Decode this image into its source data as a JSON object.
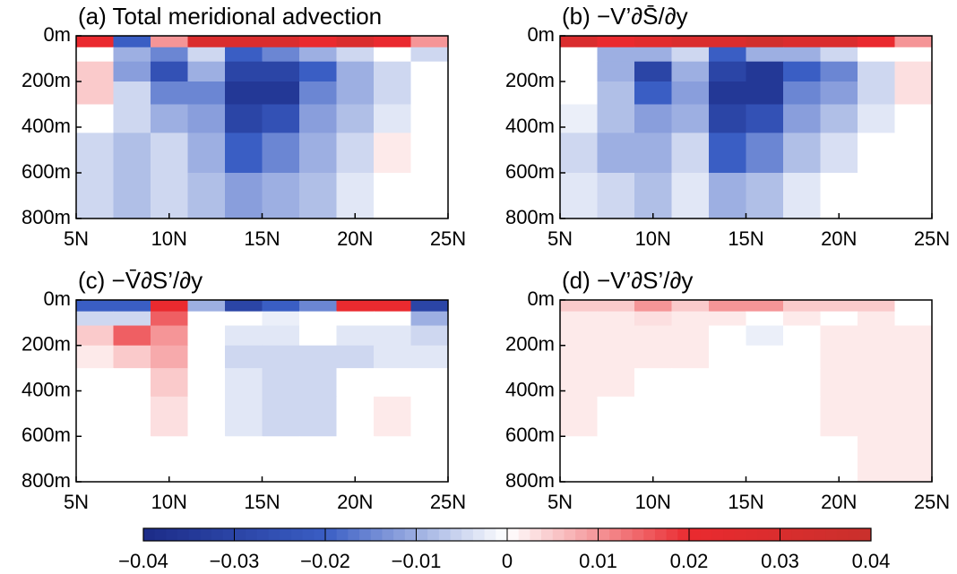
{
  "chart_data": [
    {
      "type": "heatmap",
      "title": "(a) Total meridional advection",
      "x": [
        6,
        8,
        10,
        12,
        14,
        16,
        18,
        20,
        22,
        24
      ],
      "depth": [
        25,
        75,
        150,
        250,
        350,
        500,
        700
      ],
      "values": [
        [
          0.02,
          -0.02,
          0.01,
          0.03,
          0.03,
          0.03,
          0.02,
          0.03,
          0.02,
          0.01
        ],
        [
          0.0,
          -0.01,
          -0.015,
          -0.005,
          -0.02,
          -0.015,
          -0.01,
          -0.005,
          0.0,
          -0.005
        ],
        [
          0.005,
          -0.012,
          -0.025,
          -0.01,
          -0.03,
          -0.03,
          -0.02,
          -0.01,
          -0.005,
          0.0
        ],
        [
          0.005,
          -0.005,
          -0.015,
          -0.015,
          -0.035,
          -0.035,
          -0.015,
          -0.01,
          -0.005,
          0.0
        ],
        [
          0.0,
          -0.005,
          -0.01,
          -0.012,
          -0.03,
          -0.025,
          -0.012,
          -0.008,
          -0.003,
          0.0
        ],
        [
          -0.005,
          -0.008,
          -0.005,
          -0.01,
          -0.02,
          -0.015,
          -0.01,
          -0.005,
          0.002,
          0.0
        ],
        [
          -0.005,
          -0.008,
          -0.005,
          -0.008,
          -0.012,
          -0.01,
          -0.008,
          -0.003,
          0.0,
          0.0
        ]
      ],
      "xlim": [
        5,
        25
      ],
      "ylim": [
        0,
        800
      ],
      "xticks": [
        {
          "value": 5,
          "label": "5N"
        },
        {
          "value": 10,
          "label": "10N"
        },
        {
          "value": 15,
          "label": "15N"
        },
        {
          "value": 20,
          "label": "20N"
        },
        {
          "value": 25,
          "label": "25N"
        }
      ],
      "yticks": [
        {
          "value": 0,
          "label": "0m"
        },
        {
          "value": 200,
          "label": "200m"
        },
        {
          "value": 400,
          "label": "400m"
        },
        {
          "value": 600,
          "label": "600m"
        },
        {
          "value": 800,
          "label": "800m"
        }
      ]
    },
    {
      "type": "heatmap",
      "title": "(b) −V’∂S̄/∂y",
      "x": [
        6,
        8,
        10,
        12,
        14,
        16,
        18,
        20,
        22,
        24
      ],
      "depth": [
        25,
        75,
        150,
        250,
        350,
        500,
        700
      ],
      "values": [
        [
          0.03,
          0.02,
          0.025,
          0.03,
          0.03,
          0.035,
          0.03,
          0.03,
          0.02,
          0.01
        ],
        [
          0.0,
          -0.01,
          -0.01,
          -0.005,
          -0.02,
          -0.01,
          -0.01,
          -0.005,
          0.0,
          0.0
        ],
        [
          0.0,
          -0.01,
          -0.03,
          -0.01,
          -0.03,
          -0.035,
          -0.02,
          -0.015,
          -0.005,
          0.003
        ],
        [
          0.0,
          -0.008,
          -0.02,
          -0.012,
          -0.035,
          -0.035,
          -0.015,
          -0.012,
          -0.005,
          0.003
        ],
        [
          -0.002,
          -0.008,
          -0.012,
          -0.01,
          -0.03,
          -0.025,
          -0.012,
          -0.008,
          -0.003,
          0.0
        ],
        [
          -0.005,
          -0.01,
          -0.01,
          -0.005,
          -0.02,
          -0.015,
          -0.008,
          -0.004,
          0.0,
          0.0
        ],
        [
          -0.003,
          -0.005,
          -0.008,
          -0.003,
          -0.01,
          -0.008,
          -0.003,
          0.0,
          0.0,
          0.0
        ]
      ],
      "xlim": [
        5,
        25
      ],
      "ylim": [
        0,
        800
      ],
      "xticks": [
        {
          "value": 5,
          "label": "5N"
        },
        {
          "value": 10,
          "label": "10N"
        },
        {
          "value": 15,
          "label": "15N"
        },
        {
          "value": 20,
          "label": "20N"
        },
        {
          "value": 25,
          "label": "25N"
        }
      ],
      "yticks": [
        {
          "value": 0,
          "label": "0m"
        },
        {
          "value": 200,
          "label": "200m"
        },
        {
          "value": 400,
          "label": "400m"
        },
        {
          "value": 600,
          "label": "600m"
        },
        {
          "value": 800,
          "label": "800m"
        }
      ]
    },
    {
      "type": "heatmap",
      "title": "(c) −V̄∂S’/∂y",
      "x": [
        6,
        8,
        10,
        12,
        14,
        16,
        18,
        20,
        22,
        24
      ],
      "depth": [
        25,
        75,
        150,
        250,
        350,
        500,
        700
      ],
      "values": [
        [
          -0.02,
          -0.02,
          0.02,
          -0.01,
          -0.03,
          -0.02,
          -0.015,
          0.02,
          0.02,
          -0.03
        ],
        [
          -0.005,
          -0.005,
          0.015,
          0.0,
          0.0,
          -0.002,
          0.0,
          0.0,
          0.0,
          -0.01
        ],
        [
          0.005,
          0.015,
          0.01,
          0.0,
          -0.003,
          -0.003,
          0.0,
          -0.003,
          -0.003,
          -0.005
        ],
        [
          0.002,
          0.005,
          0.008,
          0.0,
          -0.005,
          -0.005,
          -0.005,
          -0.005,
          -0.003,
          -0.003
        ],
        [
          0.0,
          0.0,
          0.005,
          0.0,
          -0.003,
          -0.005,
          -0.005,
          0.0,
          0.0,
          0.0
        ],
        [
          0.0,
          0.0,
          0.003,
          0.0,
          -0.003,
          -0.005,
          -0.005,
          0.0,
          0.002,
          0.0
        ],
        [
          0.0,
          0.0,
          0.0,
          0.0,
          0.0,
          0.0,
          0.0,
          0.0,
          0.0,
          0.0
        ]
      ],
      "xlim": [
        5,
        25
      ],
      "ylim": [
        0,
        800
      ],
      "xticks": [
        {
          "value": 5,
          "label": "5N"
        },
        {
          "value": 10,
          "label": "10N"
        },
        {
          "value": 15,
          "label": "15N"
        },
        {
          "value": 20,
          "label": "20N"
        },
        {
          "value": 25,
          "label": "25N"
        }
      ],
      "yticks": [
        {
          "value": 0,
          "label": "0m"
        },
        {
          "value": 200,
          "label": "200m"
        },
        {
          "value": 400,
          "label": "400m"
        },
        {
          "value": 600,
          "label": "600m"
        },
        {
          "value": 800,
          "label": "800m"
        }
      ]
    },
    {
      "type": "heatmap",
      "title": "(d) −V’∂S’/∂y",
      "x": [
        6,
        8,
        10,
        12,
        14,
        16,
        18,
        20,
        22,
        24
      ],
      "depth": [
        25,
        75,
        150,
        250,
        350,
        500,
        700
      ],
      "values": [
        [
          0.005,
          0.005,
          0.01,
          0.005,
          0.01,
          0.01,
          0.005,
          0.005,
          0.005,
          0.0
        ],
        [
          0.002,
          0.002,
          0.003,
          0.002,
          0.002,
          0.0,
          0.002,
          0.0,
          0.002,
          0.0
        ],
        [
          0.002,
          0.002,
          0.002,
          0.002,
          0.0,
          -0.002,
          0.0,
          0.002,
          0.002,
          0.002
        ],
        [
          0.002,
          0.002,
          0.002,
          0.002,
          0.0,
          0.0,
          0.0,
          0.002,
          0.002,
          0.002
        ],
        [
          0.002,
          0.002,
          0.0,
          0.0,
          0.0,
          0.0,
          0.0,
          0.002,
          0.002,
          0.002
        ],
        [
          0.002,
          0.0,
          0.0,
          0.0,
          0.0,
          0.0,
          0.0,
          0.002,
          0.002,
          0.002
        ],
        [
          0.0,
          0.0,
          0.0,
          0.0,
          0.0,
          0.0,
          0.0,
          0.0,
          0.002,
          0.002
        ]
      ],
      "xlim": [
        5,
        25
      ],
      "ylim": [
        0,
        800
      ],
      "xticks": [
        {
          "value": 5,
          "label": "5N"
        },
        {
          "value": 10,
          "label": "10N"
        },
        {
          "value": 15,
          "label": "15N"
        },
        {
          "value": 20,
          "label": "20N"
        },
        {
          "value": 25,
          "label": "25N"
        }
      ],
      "yticks": [
        {
          "value": 0,
          "label": "0m"
        },
        {
          "value": 200,
          "label": "200m"
        },
        {
          "value": 400,
          "label": "400m"
        },
        {
          "value": 600,
          "label": "600m"
        },
        {
          "value": 800,
          "label": "800m"
        }
      ]
    },
    {
      "type": "colorbar",
      "clim": [
        -0.04,
        0.04
      ],
      "colors": [
        "#1c2b87",
        "#3a5ec4",
        "#ffffff",
        "#ea2a2f",
        "#c9302c"
      ],
      "ticks": [
        {
          "value": -0.04,
          "label": "−0.04"
        },
        {
          "value": -0.03,
          "label": "−0.03"
        },
        {
          "value": -0.02,
          "label": "−0.02"
        },
        {
          "value": -0.01,
          "label": "−0.01"
        },
        0,
        0.01,
        0.02,
        0.03,
        0.04
      ]
    }
  ]
}
